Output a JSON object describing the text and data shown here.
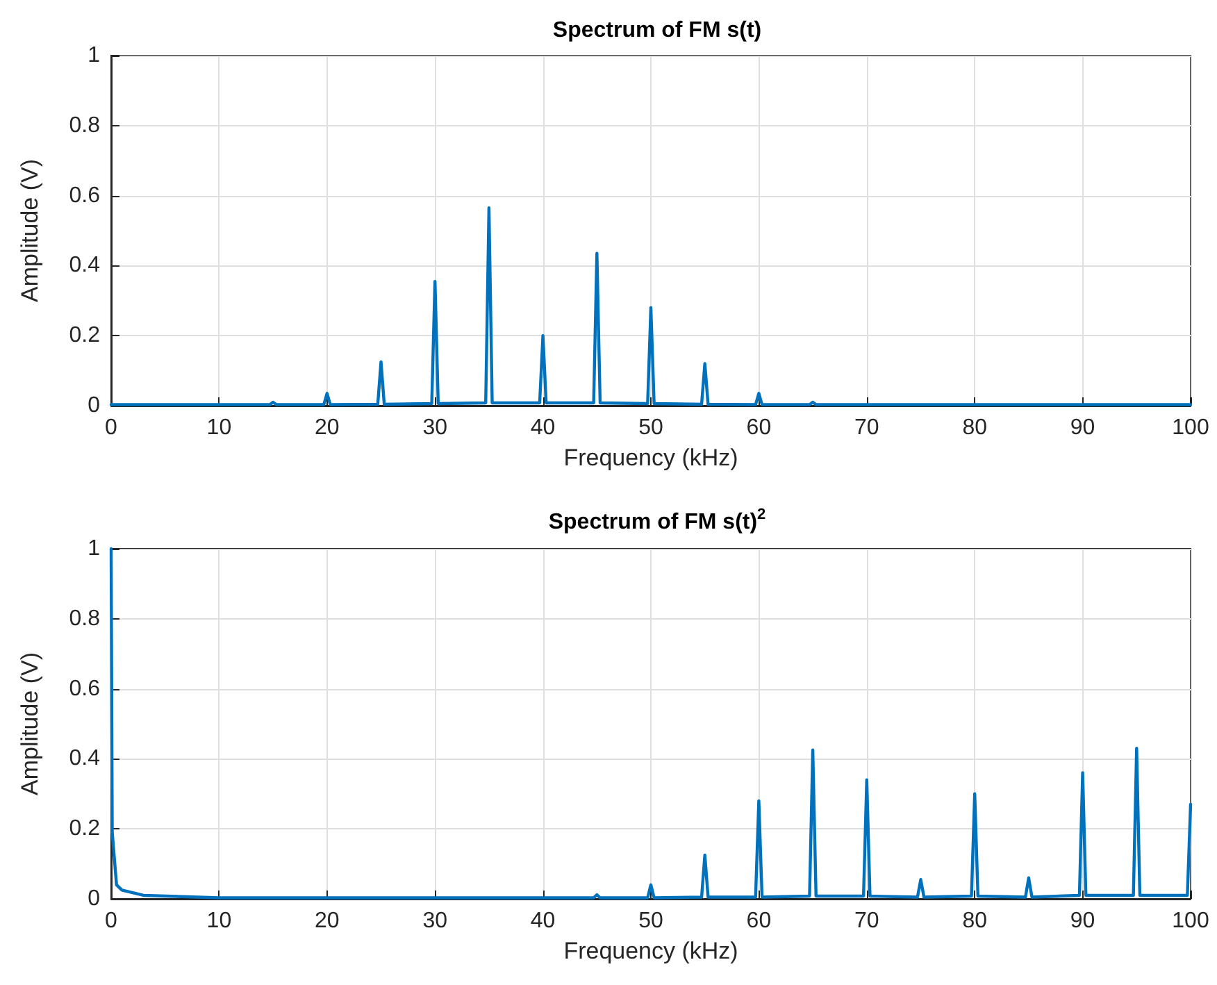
{
  "chart_data": [
    {
      "type": "line",
      "title": "Spectrum of FM s(t)",
      "xlabel": "Frequency (kHz)",
      "ylabel": "Amplitude (V)",
      "xlim": [
        0,
        100
      ],
      "xticks": [
        0,
        10,
        20,
        30,
        40,
        50,
        60,
        70,
        80,
        90,
        100
      ],
      "ylim": [
        0,
        1
      ],
      "yticks": [
        0,
        0.2,
        0.4,
        0.6,
        0.8,
        1
      ],
      "grid": true,
      "marker": "none",
      "line_style": "solid",
      "series": [
        {
          "color": "#0072bd",
          "x": [
            0,
            14.7,
            15,
            15.3,
            19.7,
            20,
            20.3,
            24.7,
            25,
            25.3,
            29.7,
            30,
            30.3,
            34.7,
            35,
            35.3,
            39.7,
            40,
            40.3,
            44.7,
            45,
            45.3,
            49.7,
            50,
            50.3,
            54.7,
            55,
            55.3,
            59.7,
            60,
            60.3,
            64.7,
            65,
            65.3,
            100
          ],
          "values": [
            0.003,
            0.003,
            0.01,
            0.003,
            0.003,
            0.035,
            0.003,
            0.004,
            0.125,
            0.004,
            0.006,
            0.355,
            0.006,
            0.008,
            0.565,
            0.008,
            0.008,
            0.2,
            0.008,
            0.008,
            0.435,
            0.008,
            0.006,
            0.28,
            0.006,
            0.004,
            0.12,
            0.004,
            0.003,
            0.035,
            0.003,
            0.003,
            0.01,
            0.003,
            0.003
          ]
        }
      ]
    },
    {
      "type": "line",
      "title": "Spectrum of FM s(t)$^{2}$",
      "xlabel": "Frequency (kHz)",
      "ylabel": "Amplitude (V)",
      "xlim": [
        0,
        100
      ],
      "xticks": [
        0,
        10,
        20,
        30,
        40,
        50,
        60,
        70,
        80,
        90,
        100
      ],
      "ylim": [
        0,
        1
      ],
      "yticks": [
        0,
        0.2,
        0.4,
        0.6,
        0.8,
        1
      ],
      "grid": true,
      "marker": "none",
      "line_style": "solid",
      "series": [
        {
          "color": "#0072bd",
          "x": [
            0,
            0.1,
            0.5,
            1,
            3,
            10,
            44.7,
            45,
            45.3,
            49.7,
            50,
            50.3,
            54.7,
            55,
            55.3,
            59.7,
            60,
            60.3,
            64.7,
            65,
            65.3,
            69.7,
            70,
            70.3,
            74.7,
            75,
            75.3,
            79.7,
            80,
            80.3,
            84.7,
            85,
            85.3,
            89.7,
            90,
            90.3,
            94.7,
            95,
            95.3,
            99.7,
            100
          ],
          "values": [
            1,
            0.19,
            0.04,
            0.025,
            0.01,
            0.003,
            0.003,
            0.012,
            0.003,
            0.003,
            0.04,
            0.003,
            0.005,
            0.125,
            0.005,
            0.005,
            0.28,
            0.005,
            0.008,
            0.425,
            0.008,
            0.008,
            0.34,
            0.008,
            0.005,
            0.055,
            0.005,
            0.008,
            0.3,
            0.008,
            0.005,
            0.06,
            0.005,
            0.01,
            0.36,
            0.01,
            0.01,
            0.43,
            0.01,
            0.01,
            0.27
          ]
        }
      ]
    }
  ]
}
